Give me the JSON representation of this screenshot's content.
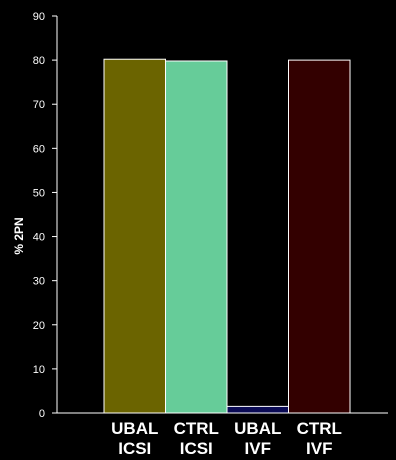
{
  "chart_data": {
    "type": "bar",
    "categories": [
      [
        "UBAL",
        "ICSI"
      ],
      [
        "CTRL",
        "ICSI"
      ],
      [
        "UBAL",
        "IVF"
      ],
      [
        "CTRL",
        "IVF"
      ]
    ],
    "values": [
      80.2,
      79.8,
      1.5,
      80.0
    ],
    "bar_colors": [
      "#6b6400",
      "#66cc99",
      "#0b0b55",
      "#330000"
    ],
    "ylabel": "% 2PN",
    "xlabel": "",
    "ylim": [
      0,
      90
    ],
    "yticks": [
      0,
      10,
      20,
      30,
      40,
      50,
      60,
      70,
      80,
      90
    ],
    "grid": false,
    "background": "#000000",
    "axis_color": "#ffffff",
    "bar_outline": "#ffffff"
  }
}
